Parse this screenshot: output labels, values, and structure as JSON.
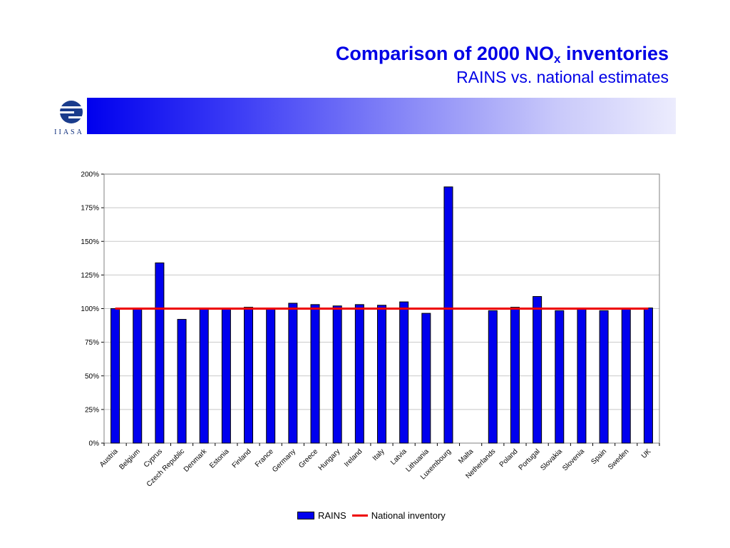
{
  "slide": {
    "title_main": "Comparison of 2000 NO",
    "title_sub": "x",
    "title_end": " inventories",
    "subtitle": "RAINS vs. national estimates",
    "logo_text": "IIASA"
  },
  "colors": {
    "title": "#0000e6",
    "bar": "#0000ee",
    "line": "#ee0000"
  },
  "chart_data": {
    "type": "bar",
    "categories": [
      "Austria",
      "Belgium",
      "Cyprus",
      "Czech Republic",
      "Denmark",
      "Estonia",
      "Finland",
      "France",
      "Germany",
      "Greece",
      "Hungary",
      "Ireland",
      "Italy",
      "Latvia",
      "Lithuania",
      "Luxembourg",
      "Malta",
      "Netherlands",
      "Poland",
      "Portugal",
      "Slovakia",
      "Slovenia",
      "Spain",
      "Sweden",
      "UK"
    ],
    "series": [
      {
        "name": "RAINS",
        "kind": "bar",
        "values": [
          100,
          100,
          134,
          92,
          100,
          100,
          101,
          100,
          104,
          103,
          102,
          103,
          102.5,
          105,
          96.5,
          190.5,
          null,
          98.5,
          101,
          109,
          98.5,
          100,
          98.5,
          100,
          100.5
        ]
      },
      {
        "name": "National inventory",
        "kind": "line",
        "values": [
          100,
          100,
          100,
          100,
          100,
          100,
          100,
          100,
          100,
          100,
          100,
          100,
          100,
          100,
          100,
          100,
          100,
          100,
          100,
          100,
          100,
          100,
          100,
          100,
          100
        ]
      }
    ],
    "ylim": [
      0,
      200
    ],
    "yticks": [
      "0%",
      "25%",
      "50%",
      "75%",
      "100%",
      "125%",
      "150%",
      "175%",
      "200%"
    ],
    "ytick_values": [
      0,
      25,
      50,
      75,
      100,
      125,
      150,
      175,
      200
    ],
    "grid": true,
    "legend_position": "bottom-center",
    "legend": [
      "RAINS",
      "National inventory"
    ]
  }
}
